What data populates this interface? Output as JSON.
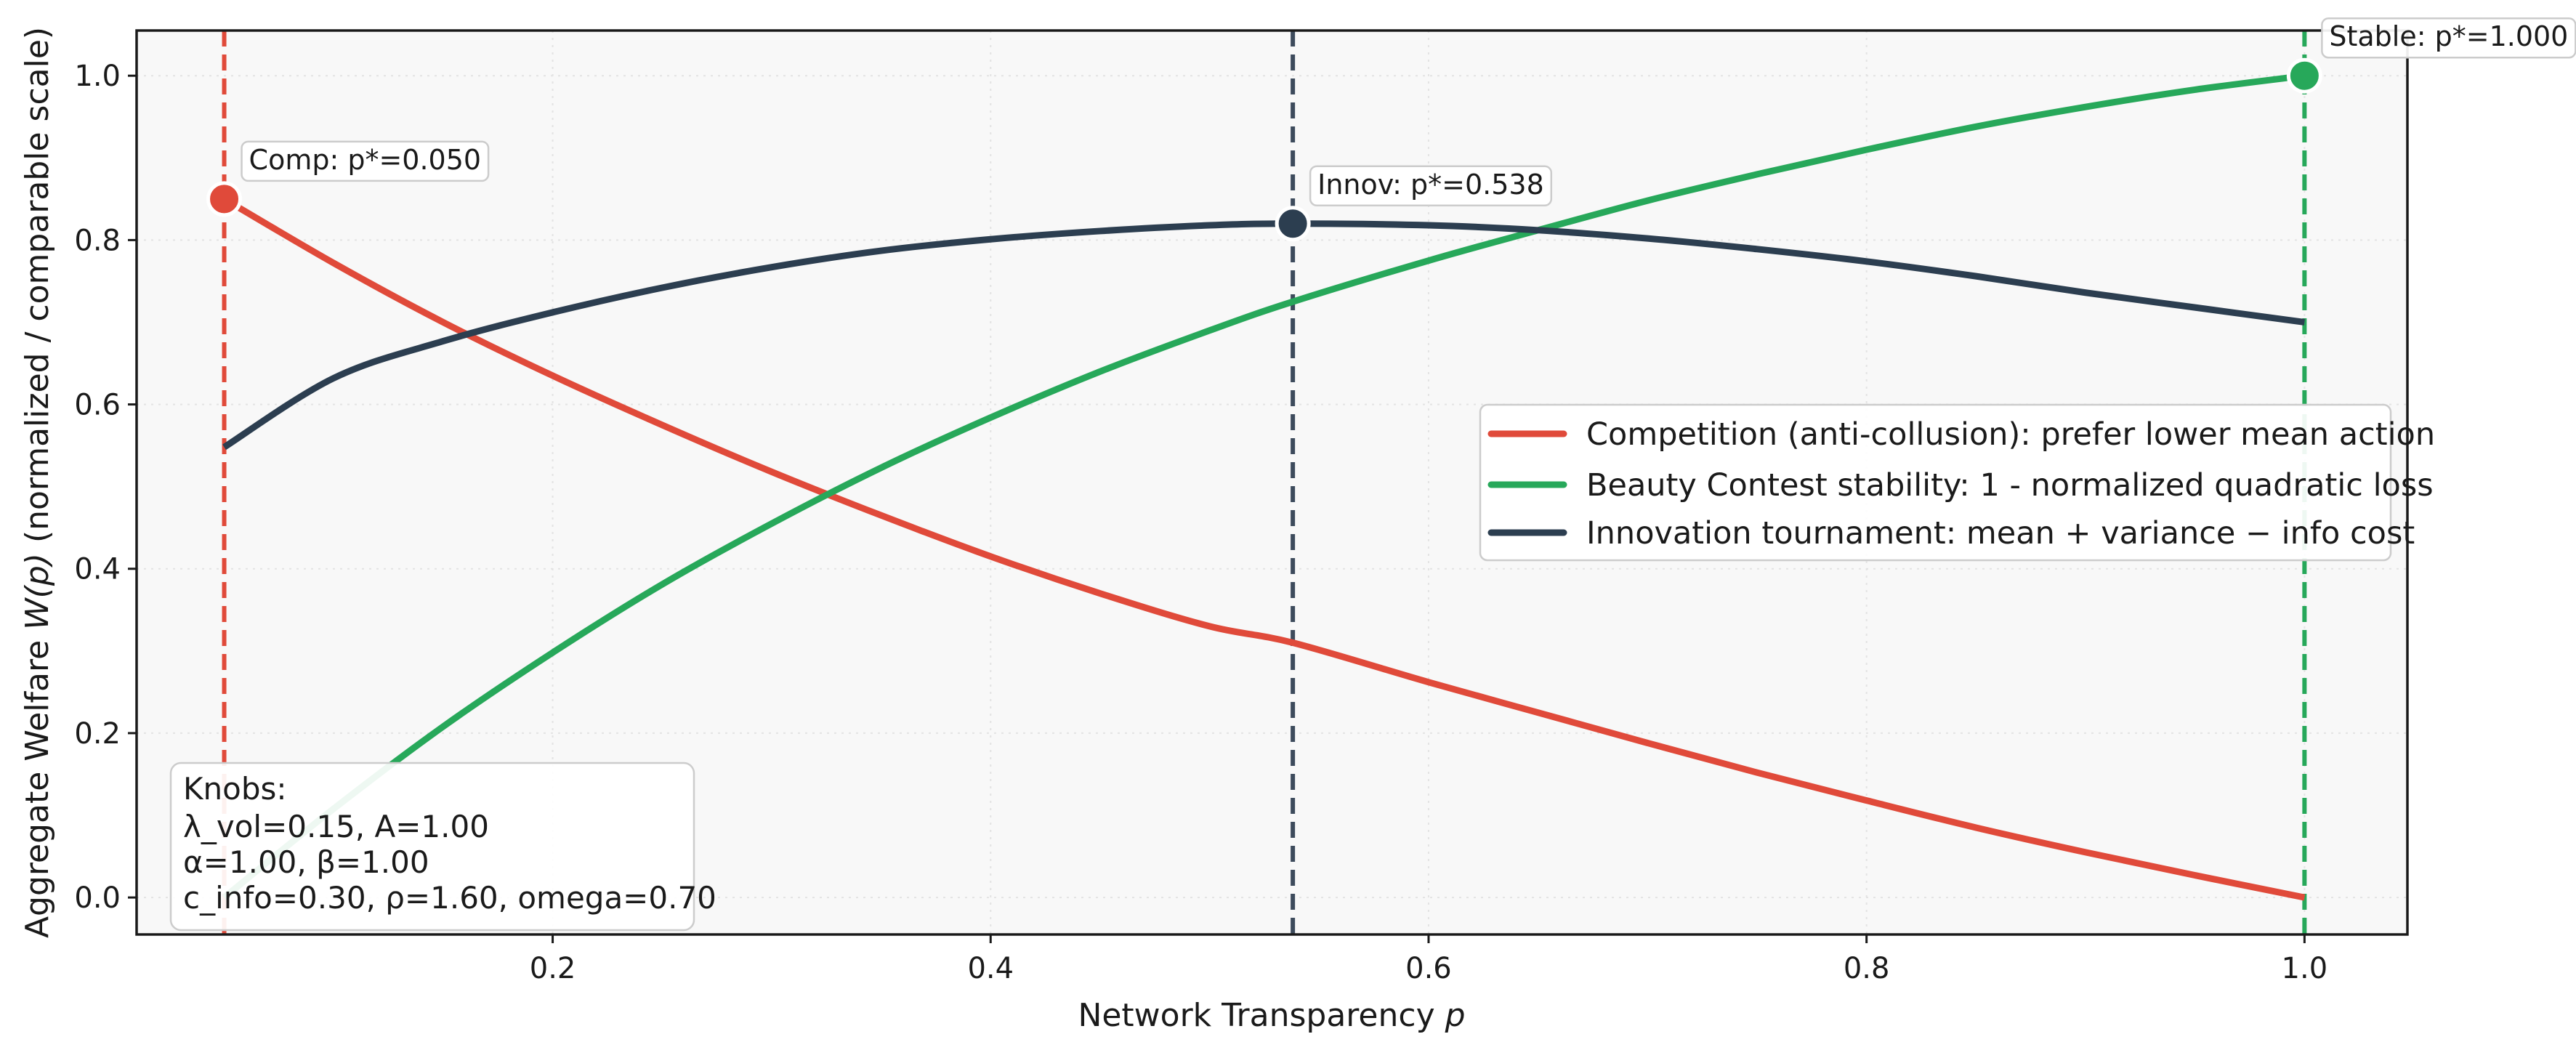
{
  "chart_data": {
    "type": "line",
    "title": "",
    "xlabel_prefix": "Network Transparency ",
    "xlabel_var": "p",
    "ylabel_prefix": "Aggregate Welfare ",
    "ylabel_var": "W(p)",
    "ylabel_suffix": " (normalized / comparable scale)",
    "xlim": [
      0.01,
      1.047
    ],
    "ylim": [
      -0.045,
      1.055
    ],
    "xticks": [
      0.2,
      0.4,
      0.6,
      0.8,
      1.0
    ],
    "xtick_labels": [
      "0.2",
      "0.4",
      "0.6",
      "0.8",
      "1.0"
    ],
    "yticks": [
      0.0,
      0.2,
      0.4,
      0.6,
      0.8,
      1.0
    ],
    "ytick_labels": [
      "0.0",
      "0.2",
      "0.4",
      "0.6",
      "0.8",
      "1.0"
    ],
    "grid": true,
    "legend_position": "center-right",
    "series": [
      {
        "name": "Competition (anti-collusion): prefer lower mean action",
        "color": "#e04a3a",
        "x": [
          0.05,
          0.1,
          0.15,
          0.2,
          0.25,
          0.3,
          0.35,
          0.4,
          0.45,
          0.5,
          0.538,
          0.6,
          0.65,
          0.7,
          0.75,
          0.8,
          0.85,
          0.9,
          0.95,
          1.0
        ],
        "y": [
          0.85,
          0.772,
          0.7,
          0.635,
          0.575,
          0.518,
          0.465,
          0.415,
          0.37,
          0.33,
          0.31,
          0.262,
          0.225,
          0.188,
          0.152,
          0.118,
          0.085,
          0.055,
          0.027,
          0.0
        ]
      },
      {
        "name": "Beauty Contest stability: 1 - normalized quadratic loss",
        "color": "#27a85a",
        "x": [
          0.05,
          0.1,
          0.15,
          0.2,
          0.25,
          0.3,
          0.35,
          0.4,
          0.45,
          0.5,
          0.538,
          0.6,
          0.65,
          0.7,
          0.75,
          0.8,
          0.85,
          0.9,
          0.95,
          1.0
        ],
        "y": [
          0.0,
          0.108,
          0.208,
          0.298,
          0.381,
          0.455,
          0.523,
          0.584,
          0.64,
          0.69,
          0.725,
          0.775,
          0.812,
          0.848,
          0.88,
          0.91,
          0.938,
          0.962,
          0.983,
          1.0
        ]
      },
      {
        "name": "Innovation tournament: mean + variance − info cost",
        "color": "#2c3e50",
        "x": [
          0.05,
          0.1,
          0.15,
          0.2,
          0.25,
          0.3,
          0.35,
          0.4,
          0.45,
          0.5,
          0.538,
          0.6,
          0.65,
          0.7,
          0.75,
          0.8,
          0.85,
          0.9,
          0.95,
          1.0
        ],
        "y": [
          0.548,
          0.632,
          0.677,
          0.712,
          0.742,
          0.767,
          0.787,
          0.801,
          0.811,
          0.818,
          0.82,
          0.818,
          0.812,
          0.802,
          0.789,
          0.774,
          0.756,
          0.736,
          0.718,
          0.7
        ]
      }
    ],
    "optima": [
      {
        "label": "Comp: p*=0.050",
        "x": 0.05,
        "y": 0.85,
        "color": "#e04a3a",
        "line_color": "#e04a3a"
      },
      {
        "label": "Innov: p*=0.538",
        "x": 0.538,
        "y": 0.82,
        "color": "#2c3e50",
        "line_color": "#3d4b5c"
      },
      {
        "label": "Stable: p*=1.000",
        "x": 1.0,
        "y": 1.0,
        "color": "#27a85a",
        "line_color": "#27a85a"
      }
    ],
    "knobs": {
      "title": "Knobs:",
      "lines": [
        "λ_vol=0.15, A=1.00",
        "α=1.00, β=1.00",
        "c_info=0.30, ρ=1.60, omega=0.70"
      ]
    }
  }
}
